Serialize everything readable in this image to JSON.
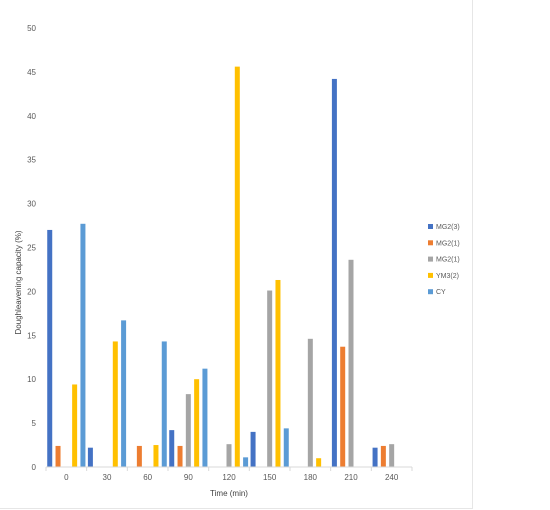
{
  "chart_data": {
    "type": "bar",
    "title": "",
    "xlabel": "Time (min)",
    "ylabel": "Doughleavening capacity (%)",
    "ylim": [
      0,
      50
    ],
    "yticks": [
      0,
      5,
      10,
      15,
      20,
      25,
      30,
      35,
      40,
      45,
      50
    ],
    "grid": false,
    "legend_position": "right",
    "categories": [
      "0",
      "30",
      "60",
      "90",
      "120",
      "150",
      "180",
      "210",
      "240"
    ],
    "series": [
      {
        "name": "MG2(3)",
        "color": "#4472c4",
        "values": [
          27.0,
          2.2,
          0,
          4.2,
          0,
          4.0,
          0,
          44.2,
          2.2
        ]
      },
      {
        "name": "MG2(1)",
        "color": "#ed7d31",
        "values": [
          2.4,
          0,
          2.4,
          2.4,
          0,
          0,
          0,
          13.7,
          2.4
        ]
      },
      {
        "name": "MG2(1)",
        "color": "#a5a5a5",
        "values": [
          0,
          0,
          0,
          8.3,
          2.6,
          20.1,
          14.6,
          23.6,
          2.6
        ]
      },
      {
        "name": "YM3(2)",
        "color": "#ffc000",
        "values": [
          9.4,
          14.3,
          2.5,
          10.0,
          45.6,
          21.3,
          1.0,
          0,
          0
        ]
      },
      {
        "name": "CY",
        "color": "#5b9bd5",
        "values": [
          27.7,
          16.7,
          14.3,
          11.2,
          1.1,
          4.4,
          0,
          0,
          0
        ]
      }
    ]
  }
}
